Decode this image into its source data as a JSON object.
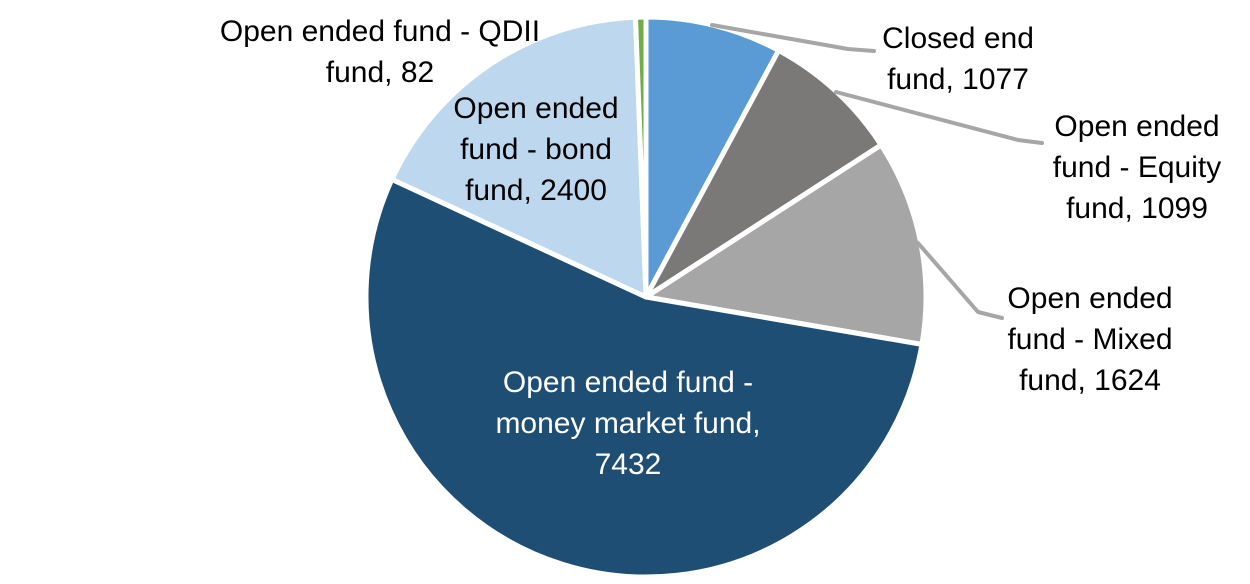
{
  "chart_data": {
    "type": "pie",
    "title": "",
    "legend": "none",
    "background_color": "#FFFFFF",
    "separator_color": "#FFFFFF",
    "leader_line_color": "#A6A6A6",
    "start_angle_deg": 0,
    "direction": "clockwise",
    "total": 13714,
    "slices": [
      {
        "id": "closed-end-fund",
        "label": "Closed end fund",
        "value": 1077,
        "color": "#5B9BD5"
      },
      {
        "id": "equity-fund",
        "label": "Open ended fund - Equity fund",
        "value": 1099,
        "color": "#7B7878"
      },
      {
        "id": "mixed-fund",
        "label": "Open ended fund - Mixed fund",
        "value": 1624,
        "color": "#A6A6A6"
      },
      {
        "id": "money-market-fund",
        "label": "Open ended fund - money market fund",
        "value": 7432,
        "color": "#1F4E74"
      },
      {
        "id": "bond-fund",
        "label": "Open ended fund - bond fund",
        "value": 2400,
        "color": "#BDD7EE"
      },
      {
        "id": "qdii-fund",
        "label": "Open ended fund - QDII fund",
        "value": 82,
        "color": "#70AD47"
      }
    ]
  },
  "labels": {
    "qdii": "Open ended fund - QDII\nfund, 82",
    "bond": "Open ended\nfund - bond\nfund, 2400",
    "closed": "Closed end\nfund, 1077",
    "equity": "Open ended\nfund - Equity\nfund, 1099",
    "mixed": "Open ended\nfund - Mixed\nfund, 1624",
    "money": "Open ended fund -\nmoney market fund,\n7432"
  }
}
